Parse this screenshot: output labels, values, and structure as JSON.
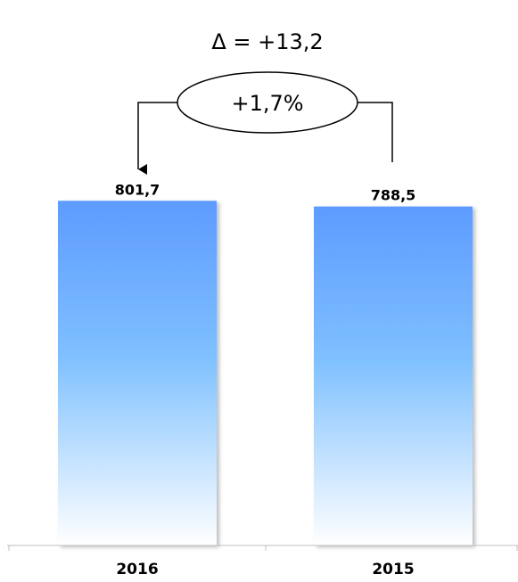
{
  "chart_data": {
    "type": "bar",
    "categories": [
      "2016",
      "2015"
    ],
    "values": [
      801.7,
      788.5
    ],
    "value_labels": [
      "801,7",
      "788,5"
    ],
    "annotation": {
      "delta_label": "Δ = +13,2",
      "percent_label": "+1,7%"
    },
    "title": "",
    "xlabel": "",
    "ylabel": "",
    "ylim": [
      0,
      850
    ],
    "grid": false,
    "legend": "none",
    "bar_gradient": [
      "#5e9bff",
      "#7ec0ff",
      "#ffffff"
    ]
  }
}
